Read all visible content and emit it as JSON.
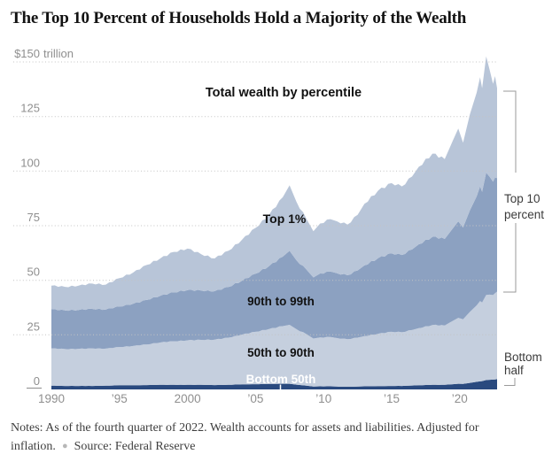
{
  "title": "The Top 10 Percent of Households Hold a Majority of the Wealth",
  "notes": {
    "text": "Notes: As of the fourth quarter of 2022. Wealth accounts for assets and liabilities. Adjusted for inflation.",
    "separator": "●",
    "source": "Source: Federal Reserve"
  },
  "chart_data": {
    "type": "area",
    "stacked": true,
    "title": "The Top 10 Percent of Households Hold a Majority of the Wealth",
    "unit": "trillions of dollars",
    "grid": "dotted horizontal",
    "legend_position": "inline labels on bands",
    "ylim": [
      0,
      150
    ],
    "yticks": [
      0,
      25,
      50,
      75,
      100,
      125,
      150
    ],
    "ytick_labels": [
      "0",
      "25",
      "50",
      "75",
      "100",
      "125",
      "$150 trillion"
    ],
    "xticks": [
      1990,
      1995,
      2000,
      2005,
      2010,
      2015,
      2020
    ],
    "xtick_labels": [
      "1990",
      "’95",
      "2000",
      "’05",
      "’10",
      "’15",
      "’20"
    ],
    "x": [
      1990,
      1991,
      1992,
      1993,
      1994,
      1995,
      1996,
      1997,
      1998,
      1999,
      2000,
      2001,
      2002,
      2003,
      2004,
      2005,
      2006,
      2007,
      2007.5,
      2008,
      2008.75,
      2009.25,
      2009.75,
      2010.5,
      2011,
      2011.75,
      2012.5,
      2013,
      2014,
      2015,
      2015.75,
      2016.5,
      2017,
      2018,
      2018.9,
      2019.5,
      2019.9,
      2020.25,
      2020.75,
      2021.25,
      2021.5,
      2021.65,
      2021.95,
      2022.2,
      2022.45,
      2022.6,
      2022.75
    ],
    "series": [
      {
        "name": "Bottom 50th",
        "color": "#2a4a7f",
        "values": [
          1.7,
          1.6,
          1.6,
          1.6,
          1.7,
          1.9,
          1.9,
          2.0,
          2.1,
          2.1,
          2.1,
          2.1,
          2.0,
          2.1,
          2.3,
          2.4,
          2.5,
          2.6,
          2.6,
          2.2,
          1.7,
          1.3,
          1.4,
          1.4,
          1.3,
          1.2,
          1.3,
          1.4,
          1.5,
          1.6,
          1.6,
          1.8,
          1.9,
          2.1,
          2.1,
          2.4,
          2.6,
          2.5,
          3.0,
          3.5,
          3.7,
          3.8,
          4.3,
          4.4,
          4.5,
          4.6,
          4.7
        ]
      },
      {
        "name": "50th to 90th",
        "color": "#c5cfde",
        "values": [
          17.1,
          16.9,
          17.0,
          17.2,
          17.0,
          17.5,
          18.0,
          18.6,
          19.4,
          20.0,
          20.4,
          20.6,
          20.8,
          21.6,
          22.8,
          24.0,
          25.2,
          26.4,
          27.0,
          25.4,
          23.6,
          22.0,
          22.4,
          22.6,
          22.2,
          21.8,
          22.4,
          23.0,
          24.0,
          24.8,
          24.6,
          25.4,
          26.2,
          27.4,
          27.2,
          29.0,
          30.2,
          29.6,
          32.5,
          35.0,
          36.8,
          36.0,
          39.0,
          39.0,
          38.7,
          39.5,
          40.1
        ]
      },
      {
        "name": "90th to 99th",
        "color": "#8ca1c1",
        "values": [
          17.9,
          17.7,
          17.8,
          18.1,
          17.9,
          18.6,
          19.3,
          20.4,
          21.4,
          22.4,
          23.0,
          22.6,
          22.2,
          23.2,
          24.7,
          26.6,
          28.8,
          31.8,
          33.9,
          31.6,
          29.5,
          28.0,
          29.3,
          30.0,
          29.7,
          29.3,
          30.8,
          32.4,
          34.6,
          35.9,
          35.4,
          36.9,
          38.4,
          40.4,
          39.6,
          42.4,
          44.2,
          42.1,
          46.5,
          50.0,
          52.5,
          50.7,
          56.0,
          54.0,
          52.0,
          53.0,
          52.0
        ]
      },
      {
        "name": "Top 1%",
        "color": "#b8c5d8",
        "values": [
          10.8,
          10.8,
          11.1,
          11.6,
          11.4,
          13.0,
          14.3,
          16.0,
          17.1,
          18.5,
          19.0,
          16.7,
          15.0,
          16.6,
          18.7,
          21.0,
          23.5,
          27.2,
          30.0,
          26.8,
          23.2,
          21.2,
          22.9,
          24.0,
          23.8,
          23.2,
          25.5,
          28.2,
          30.9,
          32.2,
          31.4,
          33.4,
          35.5,
          38.1,
          36.6,
          40.2,
          42.5,
          38.8,
          44.0,
          47.5,
          50.0,
          47.5,
          53.2,
          49.0,
          44.8,
          46.4,
          41.2
        ]
      }
    ],
    "annotations": {
      "total": "Total wealth by percentile",
      "top1": "Top 1%",
      "p90_99": "90th to 99th",
      "p50_90": "50th to 90th",
      "bottom50": "Bottom 50th",
      "top10_bracket": [
        "Top 10",
        "percent"
      ],
      "bottom_half_bracket": [
        "Bottom",
        "half"
      ]
    }
  }
}
